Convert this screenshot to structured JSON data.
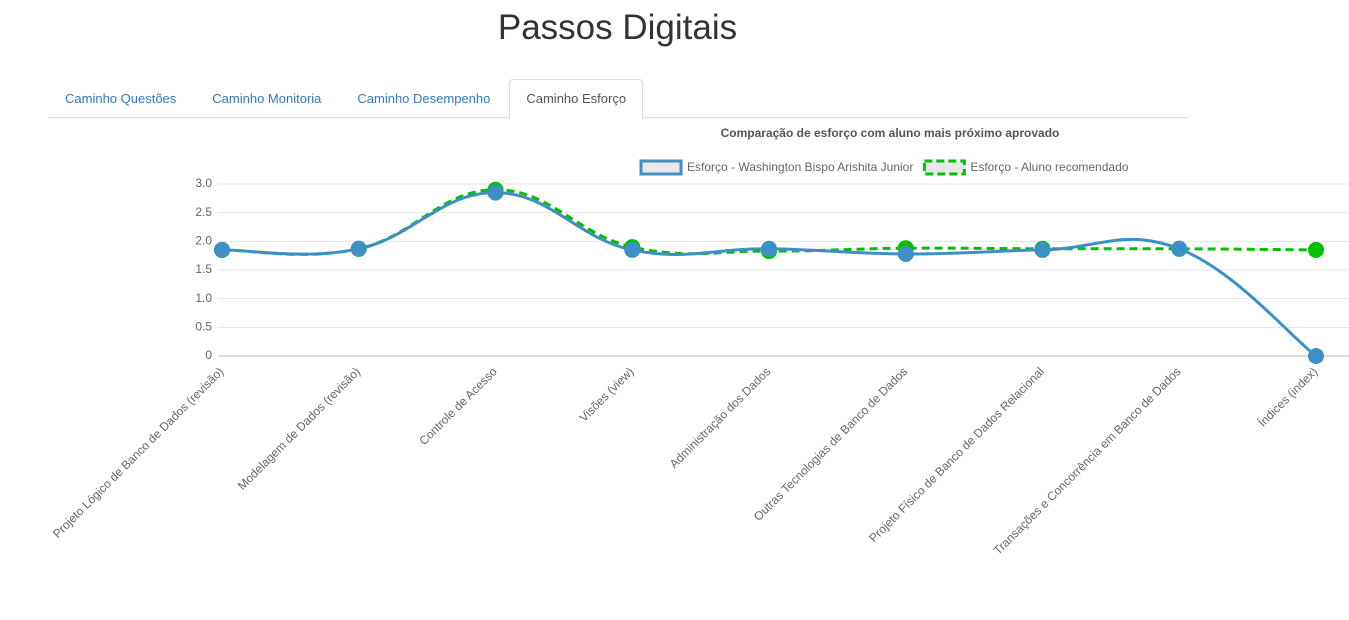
{
  "header": {
    "title": "Passos Digitais"
  },
  "tabs": [
    "Caminho Questões",
    "Caminho Monitoria",
    "Caminho Desempenho",
    "Caminho Esforço"
  ],
  "active_tab": 3,
  "chart_data": {
    "type": "line",
    "title": "Comparação de esforço com aluno mais próximo aprovado",
    "categories": [
      "Projeto Lógico de Banco de Dados (revisão)",
      "Modelagem de Dados (revisão)",
      "Controle de Acesso",
      "Visões (view)",
      "Administração dos Dados",
      "Outras Tecnologias de Banco de Dados",
      "Projeto Físico de Banco de Dados Relacional",
      "Transações e Concorrência em Banco de Dados",
      "Índices (index)"
    ],
    "series": [
      {
        "name": "Esforço - Washington Bispo Arishita Junior",
        "color": "#3f8fc7",
        "dashed": false,
        "values": [
          1.85,
          1.87,
          2.85,
          1.85,
          1.87,
          1.78,
          1.85,
          1.87,
          0
        ]
      },
      {
        "name": "Esforço - Aluno recomendado",
        "color": "#00c000",
        "dashed": true,
        "values": [
          1.85,
          1.87,
          2.9,
          1.9,
          1.83,
          1.88,
          1.87,
          1.87,
          1.85
        ]
      }
    ],
    "ylim": [
      0,
      3
    ],
    "yticks": [
      0,
      0.5,
      {
        "value": 1,
        "label": "1.0"
      },
      1.5,
      {
        "value": 2,
        "label": "2.0"
      },
      2.5,
      {
        "value": 3,
        "label": "3.0"
      }
    ],
    "grid": true,
    "legend": "top"
  }
}
